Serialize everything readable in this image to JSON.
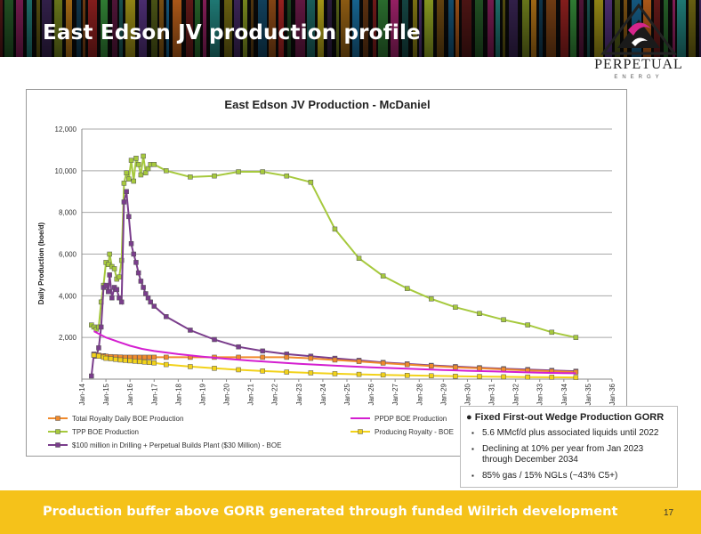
{
  "slide": {
    "title": "East Edson JV production profile",
    "footer": "Production buffer above GORR generated through funded Wilrich development",
    "page_number": "17"
  },
  "logo": {
    "name": "PERPETUAL",
    "sub": "ENERGY"
  },
  "info_box": {
    "title": "Fixed First-out Wedge Production GORR",
    "bullets": [
      "5.6 MMcf/d plus associated liquids until 2022",
      "Declining at 10% per year from Jan 2023 through December 2034",
      "85% gas / 15% NGLs (~43% C5+)"
    ]
  },
  "colors": {
    "total_royalty": "#f08a2c",
    "tpp": "#a6c93d",
    "drilling": "#7a3d8c",
    "pdp": "#d41fd0",
    "producing_royalty": "#f2d21a",
    "footer": "#f5c21a"
  },
  "chart_data": {
    "type": "line",
    "title": "East Edson JV Production - McDaniel",
    "ylabel": "Daily Production (boe/d)",
    "xlabel": "",
    "ylim": [
      0,
      12000
    ],
    "yticks": [
      2000,
      4000,
      6000,
      8000,
      10000,
      12000
    ],
    "ytick_labels": [
      "2,000",
      "4,000",
      "6,000",
      "8,000",
      "10,000",
      "12,000"
    ],
    "xlim": [
      2014,
      2036
    ],
    "xticks": [
      "Jan-14",
      "Jan-15",
      "Jan-16",
      "Jan-17",
      "Jan-18",
      "Jan-19",
      "Jan-20",
      "Jan-21",
      "Jan-22",
      "Jan-23",
      "Jan-24",
      "Jan-25",
      "Jan-26",
      "Jan-27",
      "Jan-28",
      "Jan-29",
      "Jan-30",
      "Jan-31",
      "Jan-32",
      "Jan-33",
      "Jan-34",
      "Jan-35",
      "Jan-36"
    ],
    "grid": true,
    "legend_position": "bottom",
    "series": [
      {
        "name": "TPP BOE Production",
        "color": "#a6c93d",
        "marker": "square",
        "points": [
          [
            2014.4,
            2600
          ],
          [
            2014.5,
            2500
          ],
          [
            2014.6,
            2400
          ],
          [
            2014.7,
            2500
          ],
          [
            2014.8,
            3700
          ],
          [
            2014.9,
            4500
          ],
          [
            2015.0,
            5600
          ],
          [
            2015.1,
            5500
          ],
          [
            2015.15,
            6000
          ],
          [
            2015.25,
            5400
          ],
          [
            2015.35,
            5300
          ],
          [
            2015.45,
            4800
          ],
          [
            2015.55,
            4900
          ],
          [
            2015.65,
            5700
          ],
          [
            2015.75,
            9400
          ],
          [
            2015.85,
            9900
          ],
          [
            2015.95,
            9600
          ],
          [
            2016.05,
            10500
          ],
          [
            2016.15,
            9500
          ],
          [
            2016.25,
            10600
          ],
          [
            2016.35,
            10300
          ],
          [
            2016.45,
            9800
          ],
          [
            2016.55,
            10700
          ],
          [
            2016.65,
            9900
          ],
          [
            2016.75,
            10100
          ],
          [
            2016.85,
            10300
          ],
          [
            2017.0,
            10300
          ],
          [
            2017.5,
            10000
          ],
          [
            2018.5,
            9700
          ],
          [
            2019.5,
            9750
          ],
          [
            2020.5,
            9950
          ],
          [
            2021.5,
            9950
          ],
          [
            2022.5,
            9750
          ],
          [
            2023.5,
            9450
          ],
          [
            2024.5,
            7200
          ],
          [
            2025.5,
            5800
          ],
          [
            2026.5,
            4950
          ],
          [
            2027.5,
            4350
          ],
          [
            2028.5,
            3850
          ],
          [
            2029.5,
            3450
          ],
          [
            2030.5,
            3150
          ],
          [
            2031.5,
            2850
          ],
          [
            2032.5,
            2600
          ],
          [
            2033.5,
            2250
          ],
          [
            2034.5,
            2000
          ]
        ]
      },
      {
        "name": "$100 million in Drilling + Perpetual Builds Plant ($30 Million) - BOE",
        "color": "#7a3d8c",
        "marker": "square",
        "points": [
          [
            2014.4,
            150
          ],
          [
            2014.5,
            1200
          ],
          [
            2014.6,
            1100
          ],
          [
            2014.7,
            1500
          ],
          [
            2014.8,
            2500
          ],
          [
            2014.9,
            4400
          ],
          [
            2015.0,
            4500
          ],
          [
            2015.1,
            4200
          ],
          [
            2015.15,
            5000
          ],
          [
            2015.25,
            3900
          ],
          [
            2015.35,
            4400
          ],
          [
            2015.45,
            4300
          ],
          [
            2015.55,
            3900
          ],
          [
            2015.65,
            3700
          ],
          [
            2015.75,
            8500
          ],
          [
            2015.85,
            9000
          ],
          [
            2015.95,
            7800
          ],
          [
            2016.05,
            6500
          ],
          [
            2016.15,
            6000
          ],
          [
            2016.25,
            5600
          ],
          [
            2016.35,
            5100
          ],
          [
            2016.45,
            4700
          ],
          [
            2016.55,
            4400
          ],
          [
            2016.65,
            4100
          ],
          [
            2016.75,
            3900
          ],
          [
            2016.85,
            3700
          ],
          [
            2017.0,
            3500
          ],
          [
            2017.5,
            3000
          ],
          [
            2018.5,
            2350
          ],
          [
            2019.5,
            1900
          ],
          [
            2020.5,
            1550
          ],
          [
            2021.5,
            1350
          ],
          [
            2022.5,
            1200
          ],
          [
            2023.5,
            1100
          ],
          [
            2024.5,
            1000
          ],
          [
            2025.5,
            900
          ],
          [
            2026.5,
            800
          ],
          [
            2027.5,
            730
          ],
          [
            2028.5,
            660
          ],
          [
            2029.5,
            600
          ],
          [
            2030.5,
            550
          ],
          [
            2031.5,
            500
          ],
          [
            2032.5,
            460
          ],
          [
            2033.5,
            420
          ],
          [
            2034.5,
            380
          ]
        ]
      },
      {
        "name": "Total Royalty Daily BOE Production",
        "color": "#f08a2c",
        "marker": "square",
        "points": [
          [
            2014.5,
            1150
          ],
          [
            2014.7,
            1150
          ],
          [
            2014.9,
            1120
          ],
          [
            2015.0,
            1100
          ],
          [
            2015.2,
            1080
          ],
          [
            2015.4,
            1070
          ],
          [
            2015.6,
            1060
          ],
          [
            2015.8,
            1050
          ],
          [
            2016.0,
            1050
          ],
          [
            2016.2,
            1050
          ],
          [
            2016.4,
            1050
          ],
          [
            2016.6,
            1050
          ],
          [
            2016.8,
            1050
          ],
          [
            2017.0,
            1050
          ],
          [
            2017.5,
            1050
          ],
          [
            2018.5,
            1050
          ],
          [
            2019.5,
            1050
          ],
          [
            2020.5,
            1050
          ],
          [
            2021.5,
            1050
          ],
          [
            2022.5,
            1050
          ],
          [
            2023.5,
            1000
          ],
          [
            2024.5,
            920
          ],
          [
            2025.5,
            850
          ],
          [
            2026.5,
            770
          ],
          [
            2027.5,
            700
          ],
          [
            2028.5,
            630
          ],
          [
            2029.5,
            570
          ],
          [
            2030.5,
            520
          ],
          [
            2031.5,
            470
          ],
          [
            2032.5,
            420
          ],
          [
            2033.5,
            380
          ],
          [
            2034.5,
            340
          ]
        ]
      },
      {
        "name": "PPDP BOE Production",
        "color": "#d41fd0",
        "marker": "none",
        "points": [
          [
            2014.5,
            2300
          ],
          [
            2015.0,
            2000
          ],
          [
            2015.5,
            1800
          ],
          [
            2016.0,
            1600
          ],
          [
            2016.5,
            1450
          ],
          [
            2017.0,
            1350
          ],
          [
            2018.0,
            1200
          ],
          [
            2019.0,
            1080
          ],
          [
            2020.0,
            980
          ],
          [
            2021.0,
            890
          ],
          [
            2022.0,
            810
          ],
          [
            2023.0,
            740
          ],
          [
            2024.0,
            680
          ],
          [
            2025.0,
            620
          ],
          [
            2026.0,
            570
          ],
          [
            2027.0,
            520
          ],
          [
            2028.0,
            480
          ],
          [
            2029.0,
            440
          ],
          [
            2030.0,
            400
          ],
          [
            2031.0,
            370
          ],
          [
            2032.0,
            340
          ],
          [
            2033.0,
            310
          ],
          [
            2034.0,
            290
          ],
          [
            2034.5,
            280
          ]
        ]
      },
      {
        "name": "Producing Royalty - BOE",
        "color": "#f2d21a",
        "marker": "square",
        "points": [
          [
            2014.5,
            1150
          ],
          [
            2014.7,
            1100
          ],
          [
            2014.9,
            1050
          ],
          [
            2015.0,
            1000
          ],
          [
            2015.2,
            980
          ],
          [
            2015.4,
            950
          ],
          [
            2015.6,
            920
          ],
          [
            2015.8,
            900
          ],
          [
            2016.0,
            880
          ],
          [
            2016.2,
            860
          ],
          [
            2016.4,
            840
          ],
          [
            2016.6,
            820
          ],
          [
            2016.8,
            800
          ],
          [
            2017.0,
            780
          ],
          [
            2017.5,
            700
          ],
          [
            2018.5,
            600
          ],
          [
            2019.5,
            520
          ],
          [
            2020.5,
            450
          ],
          [
            2021.5,
            390
          ],
          [
            2022.5,
            340
          ],
          [
            2023.5,
            300
          ],
          [
            2024.5,
            260
          ],
          [
            2025.5,
            230
          ],
          [
            2026.5,
            200
          ],
          [
            2027.5,
            180
          ],
          [
            2028.5,
            160
          ],
          [
            2029.5,
            140
          ],
          [
            2030.5,
            125
          ],
          [
            2031.5,
            110
          ],
          [
            2032.5,
            100
          ],
          [
            2033.5,
            90
          ],
          [
            2034.5,
            80
          ]
        ]
      }
    ]
  }
}
